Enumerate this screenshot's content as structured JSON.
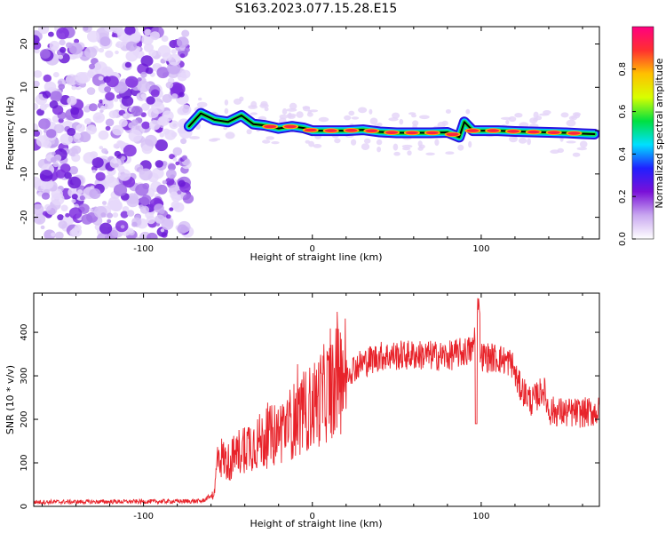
{
  "title": "S163.2023.077.15.28.E15",
  "chart_data": [
    {
      "type": "heatmap",
      "xlabel": "Height of straight line (km)",
      "ylabel": "Frequency (Hz)",
      "xlim": [
        -165,
        170
      ],
      "ylim": [
        -25,
        24
      ],
      "xticks": [
        -100,
        0,
        100
      ],
      "yticks": [
        -20,
        -10,
        0,
        10,
        20
      ],
      "noise_region_x": [
        -165,
        -73
      ],
      "ridge": {
        "x": [
          -73,
          -66,
          -58,
          -50,
          -42,
          -35,
          -28,
          -20,
          -12,
          -5,
          0,
          10,
          20,
          30,
          40,
          50,
          60,
          70,
          80,
          87,
          90,
          95,
          100,
          110,
          120,
          130,
          140,
          150,
          160,
          167
        ],
        "freq": [
          1,
          4,
          2.5,
          2,
          3.5,
          1.5,
          1.2,
          0.5,
          1.0,
          0.6,
          0,
          0,
          0,
          0.2,
          -0.3,
          -0.5,
          -0.5,
          -0.5,
          -0.4,
          -1.5,
          2,
          0,
          0,
          0,
          -0.2,
          -0.3,
          -0.4,
          -0.5,
          -0.7,
          -0.8
        ]
      },
      "colorbar": {
        "label": "Normalized spectral amplitude",
        "ticks": [
          0.0,
          0.2,
          0.4,
          0.6,
          0.8
        ],
        "tick_labels": [
          "0.0",
          "0.2",
          "0.4",
          "0.6",
          "0.8"
        ],
        "colors": [
          "#ffffff",
          "#c9a8f0",
          "#7a10d8",
          "#2020ff",
          "#00e0ff",
          "#00e040",
          "#d8ff00",
          "#ffc000",
          "#ff3030",
          "#ff0080"
        ]
      }
    },
    {
      "type": "line",
      "xlabel": "Height of straight line (km)",
      "ylabel": "SNR (10 * v/v)",
      "xlim": [
        -165,
        170
      ],
      "ylim": [
        0,
        490
      ],
      "xticks": [
        -100,
        0,
        100
      ],
      "yticks": [
        0,
        100,
        200,
        300,
        400
      ],
      "series": [
        {
          "color": "#e8232a",
          "envelope_x": [
            -165,
            -100,
            -65,
            -58,
            -56,
            -50,
            -40,
            -30,
            -20,
            -10,
            0,
            10,
            20,
            30,
            40,
            60,
            80,
            95,
            97,
            100,
            110,
            118,
            122,
            130,
            137,
            140,
            150,
            160,
            170
          ],
          "envelope_y": [
            10,
            11,
            12,
            30,
            120,
            100,
            140,
            150,
            170,
            200,
            230,
            270,
            310,
            330,
            345,
            348,
            345,
            360,
            420,
            345,
            340,
            330,
            280,
            240,
            270,
            220,
            215,
            215,
            218
          ]
        }
      ]
    }
  ]
}
